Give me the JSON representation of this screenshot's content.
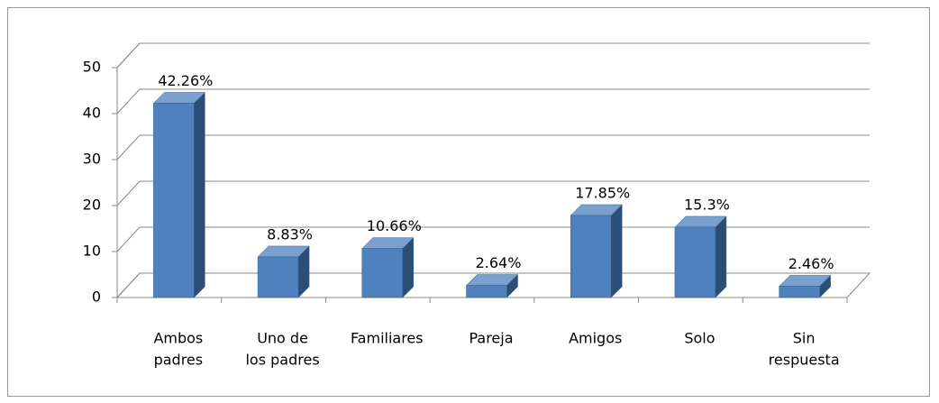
{
  "chart_data": {
    "type": "bar3d",
    "categories": [
      [
        "Ambos",
        "padres"
      ],
      [
        "Uno de",
        "los padres"
      ],
      [
        "Familiares"
      ],
      [
        "Pareja"
      ],
      [
        "Amigos"
      ],
      [
        "Solo"
      ],
      [
        "Sin",
        "respuesta"
      ]
    ],
    "values": [
      42.26,
      8.83,
      10.66,
      2.64,
      17.85,
      15.3,
      2.46
    ],
    "value_labels": [
      "42.26%",
      "8.83%",
      "10.66%",
      "2.64%",
      "17.85%",
      "15.3%",
      "2.46%"
    ],
    "color": "#4f81bd",
    "ylim": [
      0,
      50
    ],
    "yticks": [
      0,
      10,
      20,
      30,
      40,
      50
    ],
    "grid": true
  }
}
